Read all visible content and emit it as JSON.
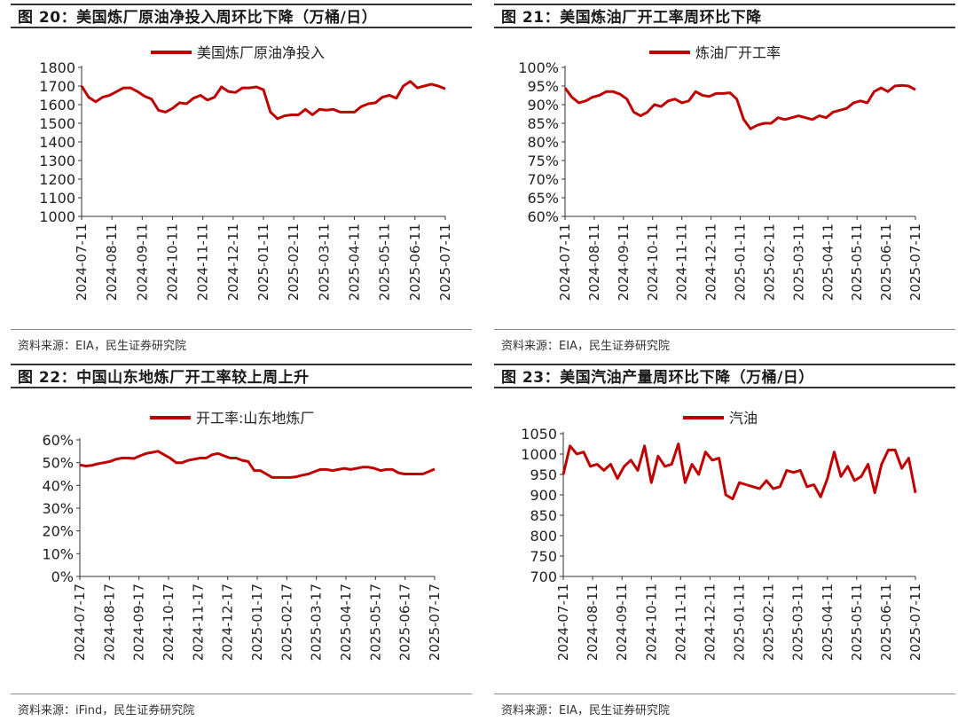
{
  "colors": {
    "line": "#c00000",
    "axis": "#333333"
  },
  "panels": [
    {
      "title": "图 20：美国炼厂原油净投入周环比下降（万桶/日）",
      "source": "资料来源：EIA，民生证券研究院"
    },
    {
      "title": "图 21：美国炼油厂开工率周环比下降",
      "source": "资料来源：EIA，民生证券研究院"
    },
    {
      "title": "图 22：中国山东地炼厂开工率较上周上升",
      "source": "资料来源：iFind，民生证券研究院"
    },
    {
      "title": "图 23：美国汽油产量周环比下降（万桶/日）",
      "source": "资料来源：EIA，民生证券研究院"
    }
  ],
  "chart_data": [
    {
      "type": "line",
      "title": "图 20：美国炼厂原油净投入周环比下降（万桶/日）",
      "legend": "美国炼厂原油净投入",
      "ylim": [
        1000,
        1800
      ],
      "yticks": [
        1000,
        1100,
        1200,
        1300,
        1400,
        1500,
        1600,
        1700,
        1800
      ],
      "y_format": "int",
      "xticks": [
        "2024-07-11",
        "2024-08-11",
        "2024-09-11",
        "2024-10-11",
        "2024-11-11",
        "2024-12-11",
        "2025-01-11",
        "2025-02-11",
        "2025-03-11",
        "2025-04-11",
        "2025-05-11",
        "2025-06-11",
        "2025-07-11"
      ],
      "values": [
        1700,
        1640,
        1615,
        1640,
        1650,
        1670,
        1690,
        1690,
        1670,
        1645,
        1630,
        1570,
        1560,
        1580,
        1610,
        1605,
        1635,
        1650,
        1625,
        1640,
        1695,
        1670,
        1665,
        1690,
        1690,
        1695,
        1680,
        1560,
        1525,
        1540,
        1545,
        1545,
        1575,
        1545,
        1575,
        1570,
        1575,
        1560,
        1560,
        1560,
        1590,
        1605,
        1610,
        1640,
        1650,
        1635,
        1700,
        1725,
        1690,
        1700,
        1710,
        1700,
        1685
      ]
    },
    {
      "type": "line",
      "title": "图 21：美国炼油厂开工率周环比下降",
      "legend": "炼油厂开工率",
      "ylim": [
        60,
        100
      ],
      "yticks": [
        60,
        65,
        70,
        75,
        80,
        85,
        90,
        95,
        100
      ],
      "y_format": "pct_int",
      "xticks": [
        "2024-07-11",
        "2024-08-11",
        "2024-09-11",
        "2024-10-11",
        "2024-11-11",
        "2024-12-11",
        "2025-01-11",
        "2025-02-11",
        "2025-03-11",
        "2025-04-11",
        "2025-05-11",
        "2025-06-11",
        "2025-07-11"
      ],
      "values": [
        94.5,
        92,
        90.5,
        91,
        92,
        92.5,
        93.5,
        93.5,
        92.8,
        91.5,
        88,
        87,
        88,
        90,
        89.5,
        91,
        91.5,
        90.5,
        91,
        93.5,
        92.5,
        92.2,
        93,
        93,
        93.2,
        91.5,
        86,
        83.5,
        84.5,
        85,
        85,
        86.5,
        86,
        86.5,
        87,
        86.5,
        86,
        87,
        86.5,
        88,
        88.5,
        89,
        90.5,
        91,
        90.5,
        93.5,
        94.5,
        93.5,
        95,
        95.2,
        95,
        94
      ]
    },
    {
      "type": "line",
      "title": "图 22：中国山东地炼厂开工率较上周上升",
      "legend": "开工率:山东地炼厂",
      "ylim": [
        0,
        60
      ],
      "yticks": [
        0,
        10,
        20,
        30,
        40,
        50,
        60
      ],
      "y_format": "pct_int",
      "xticks": [
        "2024-07-17",
        "2024-08-17",
        "2024-09-17",
        "2024-10-17",
        "2024-11-17",
        "2024-12-17",
        "2025-01-17",
        "2025-02-17",
        "2025-03-17",
        "2025-04-17",
        "2025-05-17",
        "2025-06-17",
        "2025-07-17"
      ],
      "values": [
        49,
        48.5,
        48.8,
        49.5,
        50,
        50.5,
        51.5,
        52,
        52,
        51.8,
        53,
        54,
        54.5,
        55,
        53.5,
        52,
        50,
        50,
        51,
        51.5,
        52,
        52,
        53.5,
        54,
        53,
        52,
        52,
        51,
        50.5,
        46.5,
        46.5,
        45,
        43.5,
        43.5,
        43.5,
        43.5,
        43.8,
        44.5,
        45,
        46,
        47,
        47,
        46.5,
        47,
        47.5,
        47,
        47.5,
        48,
        48,
        47.5,
        46.5,
        47,
        47,
        45.5,
        45,
        45,
        45,
        45,
        46,
        47.2
      ]
    },
    {
      "type": "line",
      "title": "图 23：美国汽油产量周环比下降（万桶/日）",
      "legend": "汽油",
      "ylim": [
        700,
        1050
      ],
      "yticks": [
        700,
        750,
        800,
        850,
        900,
        950,
        1000,
        1050
      ],
      "y_format": "int",
      "xticks": [
        "2024-07-11",
        "2024-08-11",
        "2024-09-11",
        "2024-10-11",
        "2024-11-11",
        "2024-12-11",
        "2025-01-11",
        "2025-02-11",
        "2025-03-11",
        "2025-04-11",
        "2025-05-11",
        "2025-06-11",
        "2025-07-11"
      ],
      "values": [
        950,
        1020,
        1000,
        1005,
        970,
        975,
        960,
        975,
        940,
        970,
        985,
        960,
        1020,
        930,
        995,
        970,
        975,
        1025,
        930,
        975,
        950,
        1005,
        985,
        990,
        900,
        890,
        930,
        925,
        920,
        915,
        935,
        915,
        920,
        960,
        955,
        960,
        920,
        925,
        895,
        940,
        1005,
        945,
        970,
        935,
        945,
        975,
        905,
        975,
        1010,
        1010,
        965,
        990,
        905
      ]
    }
  ]
}
